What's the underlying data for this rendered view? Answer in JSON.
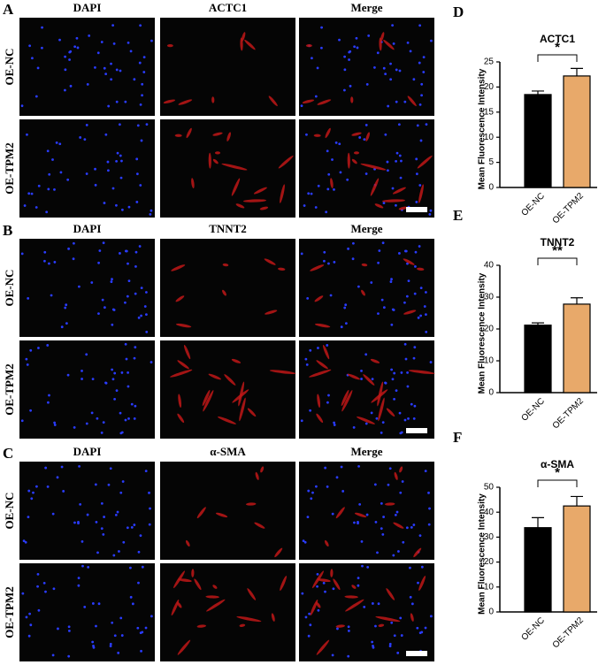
{
  "image_panels": [
    {
      "letter": "A",
      "columns": [
        "DAPI",
        "ACTC1",
        "Merge"
      ],
      "rows": [
        "OE-NC",
        "OE-TPM2"
      ]
    },
    {
      "letter": "B",
      "columns": [
        "DAPI",
        "TNNT2",
        "Merge"
      ],
      "rows": [
        "OE-NC",
        "OE-TPM2"
      ]
    },
    {
      "letter": "C",
      "columns": [
        "DAPI",
        "α-SMA",
        "Merge"
      ],
      "rows": [
        "OE-NC",
        "OE-TPM2"
      ]
    }
  ],
  "chart_data": [
    {
      "type": "bar",
      "letter": "D",
      "title": "ACTC1",
      "y_label": "Mean Fluorescence Intensity",
      "categories": [
        "OE-NC",
        "OE-TPM2"
      ],
      "values": [
        18.5,
        22.2
      ],
      "errors": [
        0.7,
        1.5
      ],
      "colors": [
        "#000000",
        "#e8a96a"
      ],
      "significance": "*",
      "ylim": [
        0,
        25
      ],
      "yticks": [
        0,
        5,
        10,
        15,
        20,
        25
      ]
    },
    {
      "type": "bar",
      "letter": "E",
      "title": "TNNT2",
      "y_label": "Mean Fluorescence Intensity",
      "categories": [
        "OE-NC",
        "OE-TPM2"
      ],
      "values": [
        21.2,
        27.8
      ],
      "errors": [
        0.7,
        2
      ],
      "colors": [
        "#000000",
        "#e8a96a"
      ],
      "significance": "**",
      "ylim": [
        0,
        40
      ],
      "yticks": [
        0,
        10,
        20,
        30,
        40
      ]
    },
    {
      "type": "bar",
      "letter": "F",
      "title": "α-SMA",
      "y_label": "Mean Fluorescence Intensity",
      "categories": [
        "OE-NC",
        "OE-TPM2"
      ],
      "values": [
        33.8,
        42.5
      ],
      "errors": [
        4,
        3.8
      ],
      "colors": [
        "#000000",
        "#e8a96a"
      ],
      "significance": "*",
      "ylim": [
        0,
        50
      ],
      "yticks": [
        0,
        10,
        20,
        30,
        40,
        50
      ]
    }
  ]
}
